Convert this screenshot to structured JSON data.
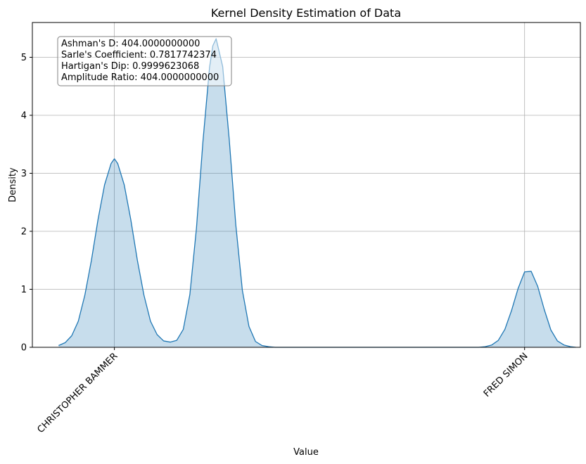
{
  "chart_data": {
    "type": "area",
    "title": "Kernel Density Estimation of Data",
    "xlabel": "Value",
    "ylabel": "Density",
    "ylim": [
      0,
      5.6
    ],
    "xlim": [
      0,
      8.35
    ],
    "x_ticks": [
      {
        "value": 1.25,
        "label": "CHRISTOPHER BAMMER"
      },
      {
        "value": 7.5,
        "label": "FRED SIMON"
      }
    ],
    "y_ticks": [
      0,
      1,
      2,
      3,
      4,
      5
    ],
    "grid": true,
    "series": [
      {
        "color": "#1f77b4",
        "fill_opacity": 0.25,
        "x": [
          0.4,
          0.5,
          0.6,
          0.7,
          0.8,
          0.9,
          1.0,
          1.1,
          1.2,
          1.25,
          1.3,
          1.4,
          1.5,
          1.6,
          1.7,
          1.8,
          1.9,
          2.0,
          2.1,
          2.2,
          2.3,
          2.4,
          2.5,
          2.6,
          2.7,
          2.75,
          2.8,
          2.9,
          3.0,
          3.1,
          3.2,
          3.3,
          3.4,
          3.5,
          3.6,
          3.7,
          3.8,
          3.9,
          4.0,
          4.2,
          4.5,
          5.0,
          5.5,
          6.0,
          6.5,
          6.8,
          6.9,
          7.0,
          7.1,
          7.2,
          7.3,
          7.4,
          7.5,
          7.6,
          7.7,
          7.8,
          7.9,
          8.0,
          8.1,
          8.2,
          8.28
        ],
        "y": [
          0.03,
          0.08,
          0.2,
          0.45,
          0.9,
          1.5,
          2.2,
          2.8,
          3.17,
          3.25,
          3.17,
          2.8,
          2.2,
          1.5,
          0.9,
          0.45,
          0.22,
          0.11,
          0.09,
          0.12,
          0.31,
          0.91,
          2.05,
          3.56,
          4.83,
          5.2,
          5.32,
          4.84,
          3.58,
          2.11,
          0.98,
          0.36,
          0.1,
          0.03,
          0.01,
          0.0,
          0.0,
          0.0,
          0.0,
          0.0,
          0.0,
          0.0,
          0.0,
          0.0,
          0.0,
          0.0,
          0.01,
          0.04,
          0.12,
          0.31,
          0.63,
          1.01,
          1.3,
          1.31,
          1.05,
          0.65,
          0.3,
          0.11,
          0.04,
          0.01,
          0.0
        ]
      }
    ],
    "annotation": {
      "lines": [
        "Ashman's D: 404.0000000000",
        "Sarle's Coefficient: 0.7817742374",
        "Hartigan's Dip: 0.9999623068",
        "Amplitude Ratio: 404.0000000000"
      ],
      "position": "top-left"
    }
  }
}
